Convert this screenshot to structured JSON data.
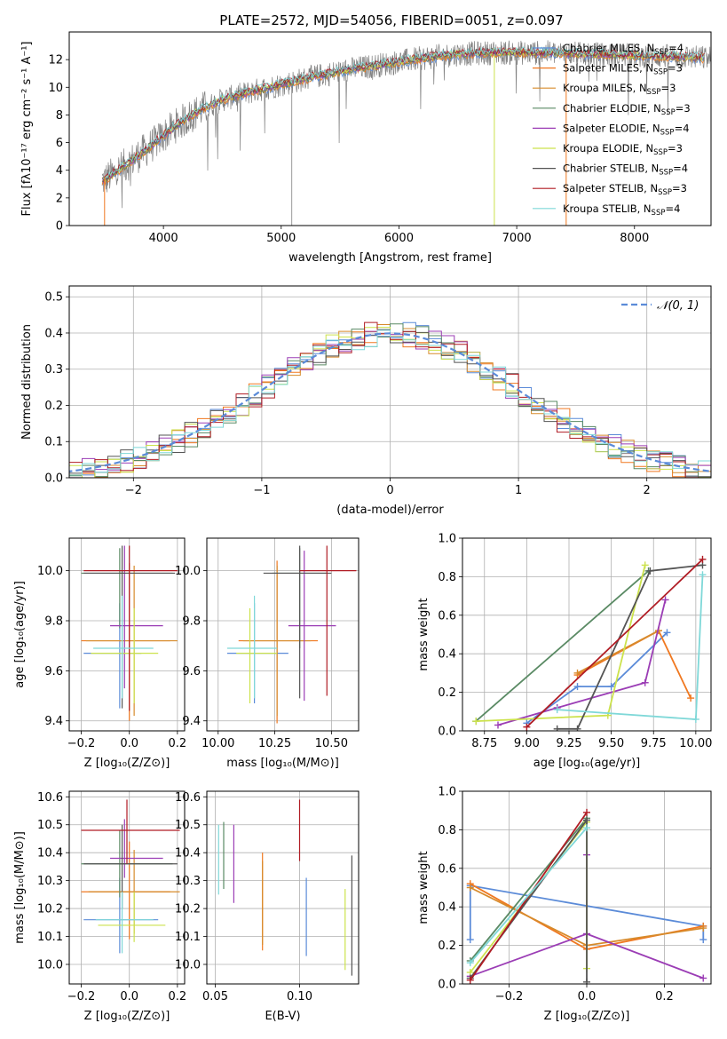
{
  "figure_title": "PLATE=2572, MJD=54056, FIBERID=0051, z=0.097",
  "colors": {
    "chabrier_miles": "#5b8bd8",
    "salpeter_miles": "#f07820",
    "kroupa_miles": "#d78b2c",
    "chabrier_elodie": "#5a8a64",
    "salpeter_elodie": "#9b3db5",
    "kroupa_elodie": "#cce24c",
    "chabrier_stelib": "#555555",
    "salpeter_stelib": "#b01c24",
    "kroupa_stelib": "#7fd8d8",
    "data_spectrum": "#808080",
    "gaussian": "#5b8bd8"
  },
  "chart_data": [
    {
      "id": "spectrum",
      "type": "line",
      "xlabel": "wavelength [Angstrom, rest frame]",
      "ylabel": "Flux [fλ10⁻¹⁷ erg cm⁻² s⁻¹ A⁻¹]",
      "xlim": [
        3200,
        8650
      ],
      "ylim": [
        0,
        14
      ],
      "xticks": [
        "4000",
        "5000",
        "6000",
        "7000",
        "8000"
      ],
      "yticks": [
        "0",
        "2",
        "4",
        "6",
        "8",
        "10",
        "12"
      ],
      "legend_position": "top-right",
      "legend": [
        {
          "label": "Chabrier MILES, N",
          "sub": "SSP",
          "suffix": "=4"
        },
        {
          "label": "Salpeter MILES, N",
          "sub": "SSP",
          "suffix": "=3"
        },
        {
          "label": "Kroupa MILES, N",
          "sub": "SSP",
          "suffix": "=3"
        },
        {
          "label": "Chabrier ELODIE, N",
          "sub": "SSP",
          "suffix": "=3"
        },
        {
          "label": "Salpeter ELODIE, N",
          "sub": "SSP",
          "suffix": "=4"
        },
        {
          "label": "Kroupa ELODIE, N",
          "sub": "SSP",
          "suffix": "=3"
        },
        {
          "label": "Chabrier STELIB, N",
          "sub": "SSP",
          "suffix": "=4"
        },
        {
          "label": "Salpeter STELIB, N",
          "sub": "SSP",
          "suffix": "=3"
        },
        {
          "label": "Kroupa STELIB, N",
          "sub": "SSP",
          "suffix": "=4"
        }
      ],
      "continuum_x": [
        3500,
        3700,
        3900,
        4100,
        4300,
        4500,
        4800,
        5000,
        5300,
        5600,
        5900,
        6200,
        6500,
        6800,
        7000,
        7300,
        7600,
        8000,
        8400,
        8650
      ],
      "continuum_y": [
        3.3,
        4.5,
        5.8,
        7.2,
        8.3,
        9.1,
        9.8,
        10.2,
        10.8,
        11.3,
        11.7,
        12.1,
        12.4,
        12.5,
        12.5,
        12.5,
        12.4,
        12.3,
        12.2,
        12.1
      ]
    },
    {
      "id": "residuals",
      "type": "histogram",
      "xlabel": "(data-model)/error",
      "ylabel": "Normed distribution",
      "xlim": [
        -2.5,
        2.5
      ],
      "ylim": [
        0,
        0.53
      ],
      "xticks": [
        "−2",
        "−1",
        "0",
        "1",
        "2"
      ],
      "yticks": [
        "0.0",
        "0.1",
        "0.2",
        "0.3",
        "0.4",
        "0.5"
      ],
      "grid": true,
      "legend_position": "top-right",
      "legend": [
        {
          "label": "𝒩(0, 1)"
        }
      ],
      "bin_width": 0.1
    },
    {
      "id": "age_vs_Z",
      "type": "errorbar",
      "xlabel": "Z [log₁₀(Z/Z⊙)]",
      "ylabel": "age  [log₁₀(age/yr)]",
      "xlim": [
        -0.25,
        0.23
      ],
      "ylim": [
        9.36,
        10.13
      ],
      "xticks": [
        "−0.2",
        "0.0",
        "0.2"
      ],
      "yticks": [
        "9.4",
        "9.6",
        "9.8",
        "10.0"
      ],
      "grid": true,
      "points": [
        {
          "model": "chabrier_miles",
          "x": -0.04,
          "xerr": [
            0.15,
            0.09
          ],
          "y": 9.67,
          "yerr": [
            0.22,
            0.2
          ]
        },
        {
          "model": "salpeter_miles",
          "x": 0.0,
          "xerr": [
            0.2,
            0.17
          ],
          "y": 9.72,
          "yerr": [
            0.32,
            0.31
          ]
        },
        {
          "model": "kroupa_miles",
          "x": 0.02,
          "xerr": [
            0.2,
            0.18
          ],
          "y": 9.72,
          "yerr": [
            0.3,
            0.3
          ]
        },
        {
          "model": "chabrier_elodie",
          "x": -0.04,
          "xerr": [
            0.16,
            0.22
          ],
          "y": 9.99,
          "yerr": [
            0.22,
            0.1
          ]
        },
        {
          "model": "salpeter_elodie",
          "x": -0.02,
          "xerr": [
            0.06,
            0.16
          ],
          "y": 9.78,
          "yerr": [
            0.25,
            0.32
          ]
        },
        {
          "model": "kroupa_elodie",
          "x": 0.02,
          "xerr": [
            0.18,
            0.1
          ],
          "y": 9.67,
          "yerr": [
            0.2,
            0.18
          ]
        },
        {
          "model": "chabrier_stelib",
          "x": -0.03,
          "xerr": [
            0.16,
            0.22
          ],
          "y": 9.99,
          "yerr": [
            0.54,
            0.11
          ]
        },
        {
          "model": "salpeter_stelib",
          "x": 0.0,
          "xerr": [
            0.19,
            0.2
          ],
          "y": 10.0,
          "yerr": [
            0.56,
            0.1
          ]
        },
        {
          "model": "kroupa_stelib",
          "x": -0.03,
          "xerr": [
            0.12,
            0.13
          ],
          "y": 9.69,
          "yerr": [
            0.2,
            0.21
          ]
        }
      ]
    },
    {
      "id": "age_vs_mass",
      "type": "errorbar",
      "xlabel": "mass [log₁₀(M/M⊙)]",
      "xlim": [
        9.95,
        10.62
      ],
      "ylim": [
        9.36,
        10.13
      ],
      "xticks": [
        "10.00",
        "10.25",
        "10.50"
      ],
      "yticks": [
        "9.4",
        "9.6",
        "9.8",
        "10.0"
      ],
      "grid": true,
      "points": [
        {
          "model": "chabrier_miles",
          "x": 10.16,
          "xerr": [
            0.12,
            0.15
          ],
          "y": 9.67,
          "yerr": [
            0.2,
            0.2
          ]
        },
        {
          "model": "salpeter_miles",
          "x": 10.26,
          "xerr": [
            0.17,
            0.18
          ],
          "y": 9.72,
          "yerr": [
            0.33,
            0.32
          ]
        },
        {
          "model": "kroupa_miles",
          "x": 10.26,
          "xerr": [
            0.15,
            0.15
          ],
          "y": 9.72,
          "yerr": [
            0.3,
            0.3
          ]
        },
        {
          "model": "chabrier_elodie",
          "x": 10.36,
          "xerr": [
            0.12,
            0.12
          ],
          "y": 9.99,
          "yerr": [
            0.3,
            0.1
          ]
        },
        {
          "model": "salpeter_elodie",
          "x": 10.38,
          "xerr": [
            0.07,
            0.14
          ],
          "y": 9.78,
          "yerr": [
            0.3,
            0.3
          ]
        },
        {
          "model": "kroupa_elodie",
          "x": 10.14,
          "xerr": [
            0.06,
            0.12
          ],
          "y": 9.67,
          "yerr": [
            0.2,
            0.18
          ]
        },
        {
          "model": "chabrier_stelib",
          "x": 10.36,
          "xerr": [
            0.16,
            0.14
          ],
          "y": 9.99,
          "yerr": [
            0.5,
            0.11
          ]
        },
        {
          "model": "salpeter_stelib",
          "x": 10.48,
          "xerr": [
            0.12,
            0.13
          ],
          "y": 10.0,
          "yerr": [
            0.5,
            0.1
          ]
        },
        {
          "model": "kroupa_stelib",
          "x": 10.16,
          "xerr": [
            0.12,
            0.1
          ],
          "y": 9.69,
          "yerr": [
            0.2,
            0.21
          ]
        }
      ]
    },
    {
      "id": "weight_vs_age",
      "type": "line",
      "xlabel": "age  [log₁₀(age/yr)]",
      "ylabel": "mass weight",
      "xlim": [
        8.62,
        10.09
      ],
      "ylim": [
        0,
        1.0
      ],
      "xticks": [
        "8.75",
        "9.00",
        "9.25",
        "9.50",
        "9.75",
        "10.00"
      ],
      "yticks": [
        "0.0",
        "0.2",
        "0.4",
        "0.6",
        "0.8",
        "1.0"
      ],
      "grid": true,
      "series": [
        {
          "model": "chabrier_miles",
          "x": [
            9.0,
            9.3,
            9.5,
            9.83
          ],
          "y": [
            0.04,
            0.23,
            0.23,
            0.51
          ]
        },
        {
          "model": "salpeter_miles",
          "x": [
            9.3,
            9.78,
            9.97
          ],
          "y": [
            0.29,
            0.52,
            0.17
          ]
        },
        {
          "model": "kroupa_miles",
          "x": [
            9.3,
            9.78
          ],
          "y": [
            0.3,
            0.52
          ]
        },
        {
          "model": "chabrier_elodie",
          "x": [
            8.7,
            9.72
          ],
          "y": [
            0.05,
            0.83
          ]
        },
        {
          "model": "salpeter_elodie",
          "x": [
            8.83,
            9.18,
            9.7,
            9.82
          ],
          "y": [
            0.03,
            0.12,
            0.25,
            0.68
          ]
        },
        {
          "model": "kroupa_elodie",
          "x": [
            8.7,
            9.48,
            9.7
          ],
          "y": [
            0.05,
            0.08,
            0.86
          ]
        },
        {
          "model": "chabrier_stelib",
          "x": [
            9.18,
            9.3,
            9.73,
            10.04
          ],
          "y": [
            0.01,
            0.01,
            0.83,
            0.86
          ]
        },
        {
          "model": "salpeter_stelib",
          "x": [
            9.0,
            10.04
          ],
          "y": [
            0.02,
            0.89
          ]
        },
        {
          "model": "kroupa_stelib",
          "x": [
            9.18,
            10.0,
            10.04
          ],
          "y": [
            0.11,
            0.06,
            0.81
          ]
        }
      ]
    },
    {
      "id": "mass_vs_Z",
      "type": "errorbar",
      "xlabel": "Z [log₁₀(Z/Z⊙)]",
      "ylabel": "mass [log₁₀(M/M⊙)]",
      "xlim": [
        -0.25,
        0.23
      ],
      "ylim": [
        9.93,
        10.62
      ],
      "xticks": [
        "−0.2",
        "0.0",
        "0.2"
      ],
      "yticks": [
        "10.0",
        "10.1",
        "10.2",
        "10.3",
        "10.4",
        "10.5",
        "10.6"
      ],
      "grid": true,
      "points": [
        {
          "model": "chabrier_miles",
          "x": -0.04,
          "xerr": [
            0.15,
            0.16
          ],
          "y": 10.16,
          "yerr": [
            0.12,
            0.15
          ]
        },
        {
          "model": "salpeter_miles",
          "x": 0.0,
          "xerr": [
            0.2,
            0.17
          ],
          "y": 10.26,
          "yerr": [
            0.17,
            0.18
          ]
        },
        {
          "model": "kroupa_miles",
          "x": 0.02,
          "xerr": [
            0.19,
            0.19
          ],
          "y": 10.26,
          "yerr": [
            0.15,
            0.15
          ]
        },
        {
          "model": "chabrier_elodie",
          "x": -0.04,
          "xerr": [
            0.16,
            0.22
          ],
          "y": 10.36,
          "yerr": [
            0.12,
            0.12
          ]
        },
        {
          "model": "salpeter_elodie",
          "x": -0.02,
          "xerr": [
            0.06,
            0.16
          ],
          "y": 10.38,
          "yerr": [
            0.07,
            0.14
          ]
        },
        {
          "model": "kroupa_elodie",
          "x": 0.02,
          "xerr": [
            0.15,
            0.13
          ],
          "y": 10.14,
          "yerr": [
            0.06,
            0.12
          ]
        },
        {
          "model": "chabrier_stelib",
          "x": -0.03,
          "xerr": [
            0.16,
            0.23
          ],
          "y": 10.36,
          "yerr": [
            0.16,
            0.14
          ]
        },
        {
          "model": "salpeter_stelib",
          "x": -0.01,
          "xerr": [
            0.19,
            0.22
          ],
          "y": 10.48,
          "yerr": [
            0.12,
            0.11
          ]
        },
        {
          "model": "kroupa_stelib",
          "x": -0.03,
          "xerr": [
            0.11,
            0.13
          ],
          "y": 10.16,
          "yerr": [
            0.12,
            0.1
          ]
        }
      ]
    },
    {
      "id": "mass_vs_ebv",
      "type": "errorbar",
      "xlabel": "E(B-V)",
      "xlim": [
        0.045,
        0.135
      ],
      "ylim": [
        9.93,
        10.62
      ],
      "xticks": [
        "0.05",
        "0.10"
      ],
      "yticks": [
        "10.0",
        "10.1",
        "10.2",
        "10.3",
        "10.4",
        "10.5",
        "10.6"
      ],
      "grid": true,
      "points": [
        {
          "model": "chabrier_miles",
          "x": 0.104,
          "y": 10.16,
          "yerr": [
            0.13,
            0.15
          ]
        },
        {
          "model": "salpeter_miles",
          "x": 0.078,
          "y": 10.23,
          "yerr": [
            0.18,
            0.17
          ]
        },
        {
          "model": "kroupa_miles",
          "x": 0.078,
          "y": 10.22,
          "yerr": [
            0.15,
            0.15
          ]
        },
        {
          "model": "chabrier_elodie",
          "x": 0.055,
          "y": 10.39,
          "yerr": [
            0.12,
            0.12
          ]
        },
        {
          "model": "salpeter_elodie",
          "x": 0.061,
          "y": 10.36,
          "yerr": [
            0.14,
            0.14
          ]
        },
        {
          "model": "kroupa_elodie",
          "x": 0.127,
          "y": 10.13,
          "yerr": [
            0.15,
            0.14
          ]
        },
        {
          "model": "chabrier_stelib",
          "x": 0.131,
          "y": 10.17,
          "yerr": [
            0.21,
            0.22
          ]
        },
        {
          "model": "salpeter_stelib",
          "x": 0.1,
          "y": 10.48,
          "yerr": [
            0.11,
            0.11
          ]
        },
        {
          "model": "kroupa_stelib",
          "x": 0.052,
          "y": 10.38,
          "yerr": [
            0.13,
            0.12
          ]
        }
      ]
    },
    {
      "id": "weight_vs_Z",
      "type": "line",
      "xlabel": "Z [log₁₀(Z/Z⊙)]",
      "ylabel": "mass weight",
      "xlim": [
        -0.32,
        0.32
      ],
      "ylim": [
        0,
        1.0
      ],
      "xticks": [
        "−0.2",
        "0.0",
        "0.2"
      ],
      "yticks": [
        "0.0",
        "0.2",
        "0.4",
        "0.6",
        "0.8",
        "1.0"
      ],
      "grid": true,
      "series": [
        {
          "model": "chabrier_miles",
          "x": [
            -0.3,
            -0.3,
            0.3,
            0.3
          ],
          "y": [
            0.23,
            0.51,
            0.3,
            0.23
          ]
        },
        {
          "model": "salpeter_miles",
          "x": [
            -0.3,
            0.0,
            0.3
          ],
          "y": [
            0.52,
            0.18,
            0.3
          ]
        },
        {
          "model": "kroupa_miles",
          "x": [
            -0.3,
            0.0,
            0.3
          ],
          "y": [
            0.5,
            0.2,
            0.29
          ]
        },
        {
          "model": "chabrier_elodie",
          "x": [
            -0.3,
            0.0
          ],
          "y": [
            0.12,
            0.86
          ]
        },
        {
          "model": "salpeter_elodie",
          "x": [
            -0.3,
            0.0,
            0.3,
            0.0,
            0.0
          ],
          "y": [
            0.04,
            0.26,
            0.03,
            0.26,
            0.67
          ]
        },
        {
          "model": "kroupa_elodie",
          "x": [
            -0.3,
            0.0,
            0.0
          ],
          "y": [
            0.06,
            0.84,
            0.08
          ]
        },
        {
          "model": "chabrier_stelib",
          "x": [
            -0.3,
            0.0,
            0.0
          ],
          "y": [
            0.03,
            0.85,
            0.01
          ]
        },
        {
          "model": "salpeter_stelib",
          "x": [
            -0.3,
            0.0
          ],
          "y": [
            0.02,
            0.89
          ]
        },
        {
          "model": "kroupa_stelib",
          "x": [
            -0.3,
            0.0
          ],
          "y": [
            0.11,
            0.81
          ]
        }
      ]
    }
  ]
}
